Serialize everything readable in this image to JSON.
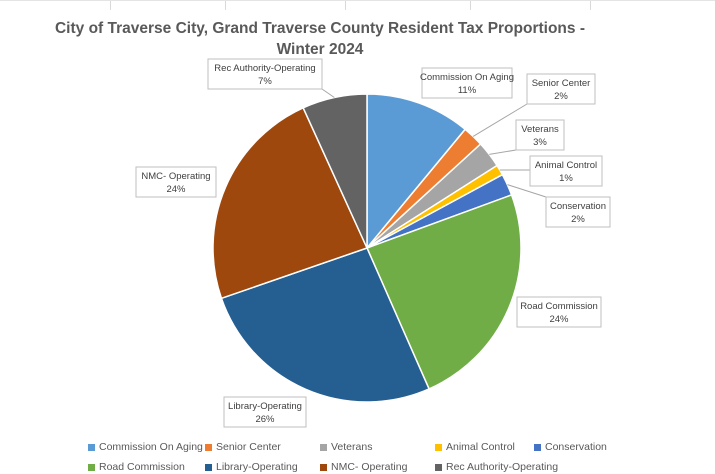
{
  "chart_data": {
    "type": "pie",
    "title_line1": "City of Traverse City, Grand Traverse County Resident Tax Proportions -",
    "title_line2": "Winter 2024",
    "legend_position": "bottom",
    "slices": [
      {
        "name": "Commission On Aging",
        "label": "Commission On Aging",
        "percent_label": "11%",
        "value": 11.0,
        "color": "#5B9BD5"
      },
      {
        "name": "Senior Center",
        "label": "Senior Center",
        "percent_label": "2%",
        "value": 2.2,
        "color": "#ED7D31"
      },
      {
        "name": "Veterans",
        "label": "Veterans",
        "percent_label": "3%",
        "value": 2.8,
        "color": "#A5A5A5"
      },
      {
        "name": "Animal Control",
        "label": "Animal Control",
        "percent_label": "1%",
        "value": 1.1,
        "color": "#FFC000"
      },
      {
        "name": "Conservation",
        "label": "Conservation",
        "percent_label": "2%",
        "value": 2.3,
        "color": "#4472C4"
      },
      {
        "name": "Road Commission",
        "label": "Road Commission",
        "percent_label": "24%",
        "value": 24.0,
        "color": "#70AD47"
      },
      {
        "name": "Library-Operating",
        "label": "Library-Operating",
        "percent_label": "26%",
        "value": 26.3,
        "color": "#255E91"
      },
      {
        "name": "NMC- Operating",
        "label": "NMC- Operating",
        "percent_label": "24%",
        "value": 23.5,
        "color": "#9E480E"
      },
      {
        "name": "Rec Authority-Operating",
        "label": "Rec Authority-Operating",
        "percent_label": "7%",
        "value": 6.8,
        "color": "#636363"
      }
    ]
  }
}
